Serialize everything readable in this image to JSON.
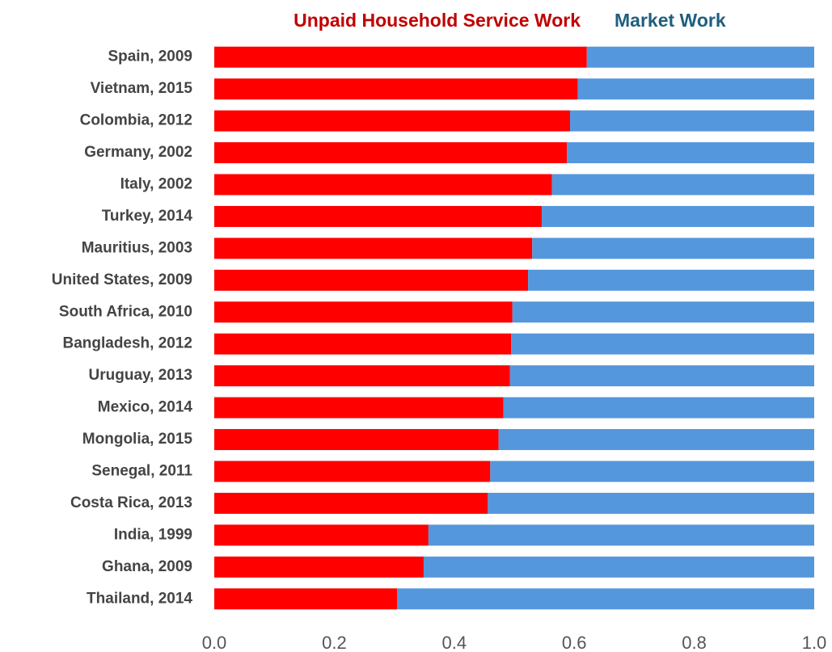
{
  "chart_data": {
    "type": "stacked-barh",
    "categories": [
      "Spain, 2009",
      "Vietnam, 2015",
      "Colombia, 2012",
      "Germany, 2002",
      "Italy, 2002",
      "Turkey, 2014",
      "Mauritius, 2003",
      "United States, 2009",
      "South Africa, 2010",
      "Bangladesh, 2012",
      "Uruguay, 2013",
      "Mexico, 2014",
      "Mongolia, 2015",
      "Senegal, 2011",
      "Costa Rica, 2013",
      "India, 1999",
      "Ghana, 2009",
      "Thailand, 2014"
    ],
    "series": [
      {
        "name": "Unpaid Household Service Work",
        "color": "#ff0000",
        "label_color": "#c00000",
        "values": [
          0.621,
          0.606,
          0.593,
          0.588,
          0.563,
          0.546,
          0.53,
          0.523,
          0.497,
          0.495,
          0.493,
          0.482,
          0.474,
          0.46,
          0.456,
          0.357,
          0.349,
          0.305
        ]
      },
      {
        "name": "Market Work",
        "color": "#5597dc",
        "label_color": "#1f5f7e",
        "values": [
          0.379,
          0.394,
          0.407,
          0.412,
          0.437,
          0.454,
          0.47,
          0.477,
          0.503,
          0.505,
          0.507,
          0.518,
          0.526,
          0.54,
          0.544,
          0.643,
          0.651,
          0.695
        ]
      }
    ],
    "xlim": [
      0,
      1
    ],
    "xticks": [
      {
        "value": 0,
        "label": "0.0"
      },
      0.2,
      0.4,
      0.6,
      0.8,
      {
        "value": 1,
        "label": "1.0"
      }
    ]
  }
}
